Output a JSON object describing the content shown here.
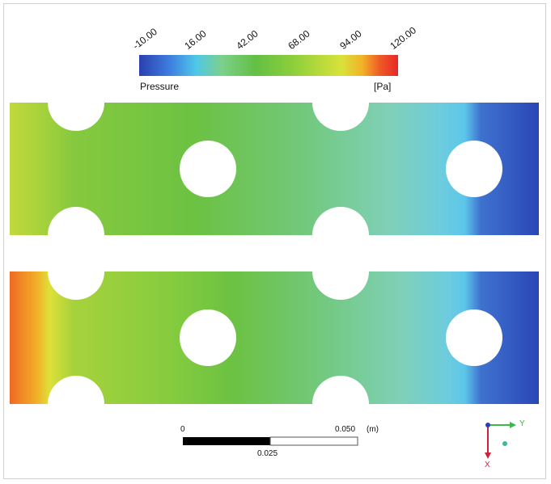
{
  "legend": {
    "title": "Pressure",
    "unit": "[Pa]",
    "ticks": [
      "-10.00",
      "16.00",
      "42.00",
      "68.00",
      "94.00",
      "120.00"
    ],
    "colors": [
      "#2a3fb0",
      "#3f7fe0",
      "#4fc8e8",
      "#7cd08a",
      "#63bf44",
      "#8fcf3c",
      "#d8e23a",
      "#f2b428",
      "#ee5a24",
      "#e8262a"
    ]
  },
  "panels": [
    {
      "name": "top-panel",
      "inlet_color": "#c2d83c"
    },
    {
      "name": "bottom-panel",
      "inlet_color": "#ee6a24"
    }
  ],
  "scale_bar": {
    "left_label": "0",
    "right_label": "0.050",
    "unit": "(m)",
    "mid_label": "0.025"
  },
  "axes_triad": {
    "y_label": "Y",
    "x_label": "X",
    "x_color": "#d0203a",
    "y_color": "#3ab84a",
    "z_color": "#2a3fb0"
  }
}
